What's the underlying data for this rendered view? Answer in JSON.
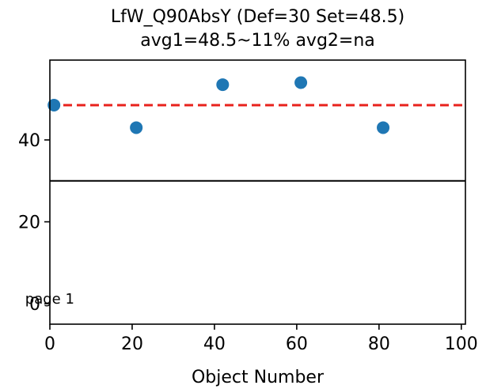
{
  "chart_data": {
    "type": "scatter",
    "title_line1": "LfW_Q90AbsY (Def=30 Set=48.5)",
    "title_line2": "avg1=48.5~11% avg2=na",
    "xlabel": "Object Number",
    "ylabel": "",
    "xlim": [
      0,
      101
    ],
    "ylim": [
      -5,
      59.5
    ],
    "xticks": [
      0,
      20,
      40,
      60,
      80,
      100
    ],
    "yticks": [
      0,
      20,
      40
    ],
    "grid": false,
    "series": [
      {
        "values_x": [
          1,
          21,
          42,
          61,
          81
        ],
        "values_y": [
          48.5,
          43.0,
          53.5,
          54.0,
          43.0
        ],
        "color": "#1f77b4"
      }
    ],
    "hlines": [
      {
        "y": 48.5,
        "color": "#e8221c",
        "style": "dashed"
      },
      {
        "y": 30,
        "color": "#000000",
        "style": "solid"
      }
    ],
    "annotation": {
      "text": "page 1",
      "x": -6,
      "y": 1
    }
  }
}
